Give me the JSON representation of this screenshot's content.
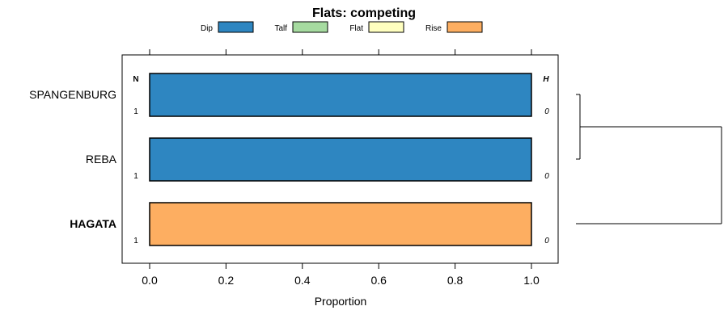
{
  "chart_data": {
    "type": "bar",
    "subtype": "stacked-horizontal-proportion",
    "title": "Flats: competing",
    "xlabel": "Proportion",
    "ylabel": "",
    "xlim": [
      -0.07,
      1.07
    ],
    "x_ticks": [
      0.0,
      0.2,
      0.4,
      0.6,
      0.8,
      1.0
    ],
    "x_tick_labels": [
      "0.0",
      "0.2",
      "0.4",
      "0.6",
      "0.8",
      "1.0"
    ],
    "legend": {
      "placement": "top",
      "entries": [
        {
          "name": "Dip",
          "color": "#2e86c1"
        },
        {
          "name": "Talf",
          "color": "#a6dba0"
        },
        {
          "name": "Flat",
          "color": "#ffffbf"
        },
        {
          "name": "Rise",
          "color": "#fdae61"
        }
      ]
    },
    "column_headers": {
      "left": "N",
      "right": "H"
    },
    "categories": [
      "SPANGENBURG",
      "REBA",
      "HAGATA"
    ],
    "bold_categories": [
      "HAGATA"
    ],
    "n_values": [
      "1",
      "1",
      "1"
    ],
    "h_values": [
      "0",
      "0",
      "0"
    ],
    "series": [
      {
        "name": "Dip",
        "color": "#2e86c1",
        "values": [
          1.0,
          1.0,
          0.0
        ]
      },
      {
        "name": "Talf",
        "color": "#a6dba0",
        "values": [
          0.0,
          0.0,
          0.0
        ]
      },
      {
        "name": "Flat",
        "color": "#ffffbf",
        "values": [
          0.0,
          0.0,
          0.0
        ]
      },
      {
        "name": "Rise",
        "color": "#fdae61",
        "values": [
          0.0,
          0.0,
          1.0
        ]
      }
    ],
    "dendrogram": {
      "leaves": [
        "SPANGENBURG",
        "REBA",
        "HAGATA"
      ],
      "merges": [
        {
          "left": "SPANGENBURG",
          "right": "REBA",
          "height": 0.0
        },
        {
          "left": "SPANGENBURG+REBA",
          "right": "HAGATA",
          "height": 1.0
        }
      ]
    }
  }
}
